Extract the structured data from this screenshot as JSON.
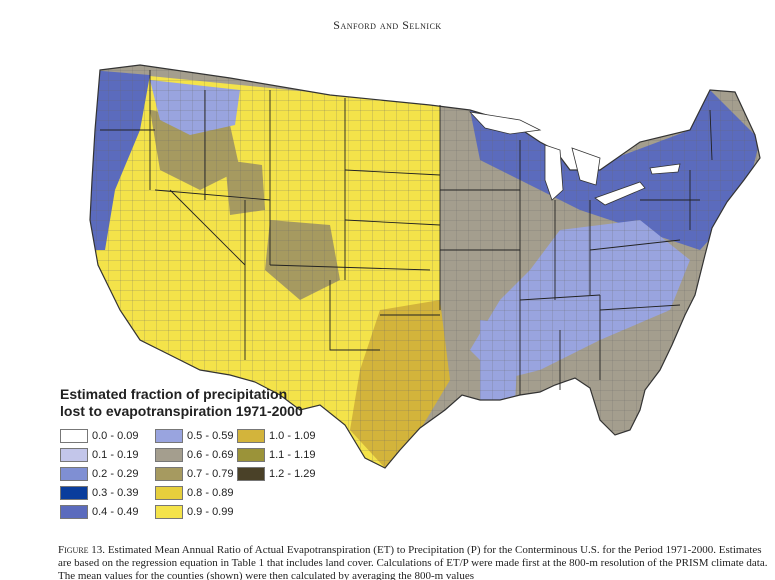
{
  "header": {
    "running_head": "Sanford and Selnick"
  },
  "legend": {
    "title_line1": "Estimated fraction of precipitation",
    "title_line2": "lost to evapotranspiration 1971-2000",
    "classes": [
      {
        "label": "0.0 - 0.09",
        "color": "#ffffff"
      },
      {
        "label": "0.1 - 0.19",
        "color": "#c3c6ea"
      },
      {
        "label": "0.2 - 0.29",
        "color": "#7f8fd3"
      },
      {
        "label": "0.3 - 0.39",
        "color": "#0a3d9c"
      },
      {
        "label": "0.4 - 0.49",
        "color": "#5b6bbd"
      },
      {
        "label": "0.5 - 0.59",
        "color": "#99a4df"
      },
      {
        "label": "0.6 - 0.69",
        "color": "#a49e8e"
      },
      {
        "label": "0.7 - 0.79",
        "color": "#a69a60"
      },
      {
        "label": "0.8 - 0.89",
        "color": "#e6cf3c"
      },
      {
        "label": "0.9 - 0.99",
        "color": "#f4e34a"
      },
      {
        "label": "1.0 - 1.09",
        "color": "#d3b43b"
      },
      {
        "label": "1.1 - 1.19",
        "color": "#9b9339"
      },
      {
        "label": "1.2 - 1.29",
        "color": "#4a4128"
      }
    ]
  },
  "caption": {
    "label": "Figure 13.",
    "text": " Estimated Mean Annual Ratio of Actual Evapotranspiration (ET) to Precipitation (P) for the Conterminous U.S. for the Period 1971-2000. Estimates are based on the regression equation in Table 1 that includes land cover. Calculations of ET/P were made first at the 800-m resolution of the PRISM climate data. The mean values for the counties (shown) were then calculated by averaging the 800-m values"
  }
}
